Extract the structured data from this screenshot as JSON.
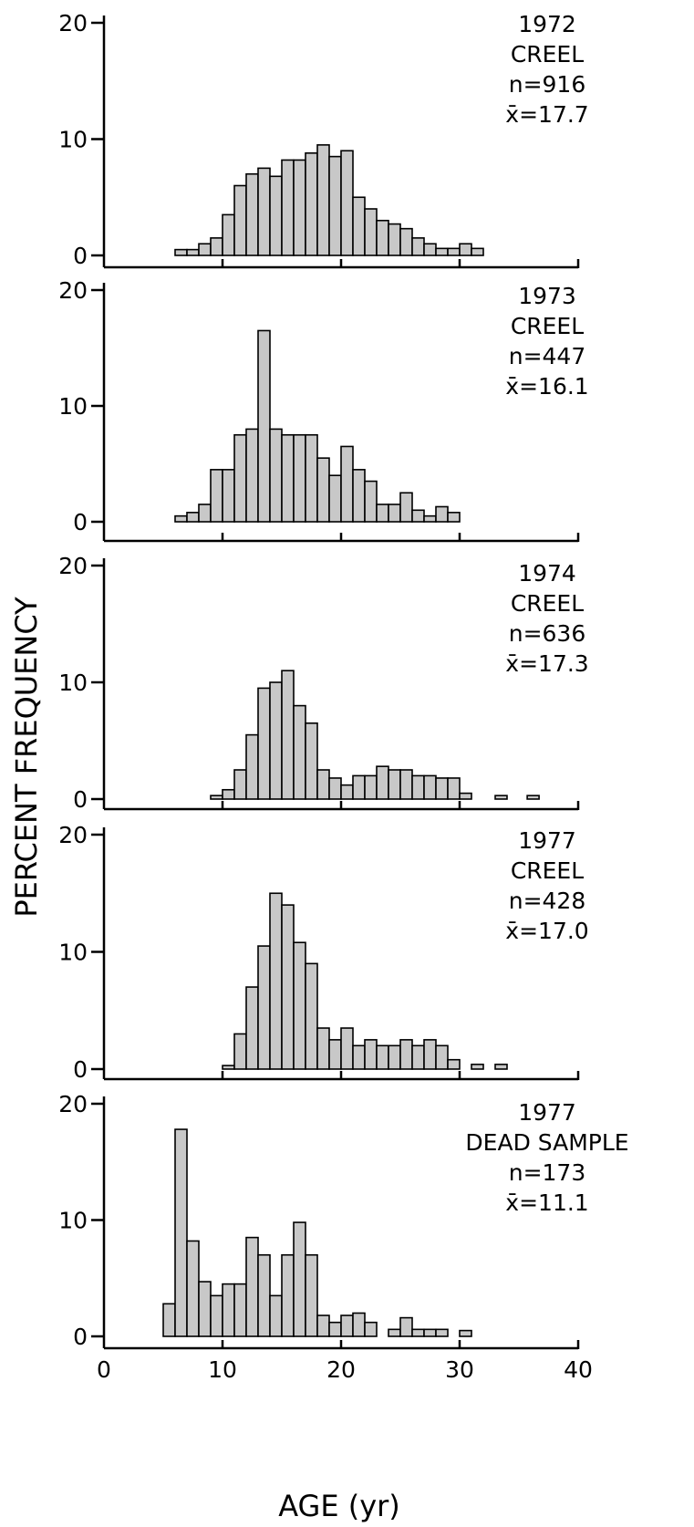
{
  "chart_data": {
    "type": "histogram",
    "xlabel": "AGE (yr)",
    "ylabel": "PERCENT FREQUENCY",
    "xlim": [
      0,
      40
    ],
    "xticks": [
      0,
      10,
      20,
      30,
      40
    ],
    "xtick_labels": [
      "0",
      "10",
      "20",
      "30",
      "40"
    ],
    "ylim": [
      0,
      20
    ],
    "yticks": [
      0,
      10,
      20
    ],
    "ytick_labels": [
      "0",
      "10",
      "20"
    ],
    "fill_color": "#c8c8c8",
    "panels": [
      {
        "label_lines": [
          "1972",
          "CREEL",
          "n=916",
          "x̄=17.7"
        ],
        "bins": [
          {
            "x": 6,
            "y": 0.5
          },
          {
            "x": 7,
            "y": 0.5
          },
          {
            "x": 8,
            "y": 1
          },
          {
            "x": 9,
            "y": 1.5
          },
          {
            "x": 10,
            "y": 3.5
          },
          {
            "x": 11,
            "y": 6
          },
          {
            "x": 12,
            "y": 7
          },
          {
            "x": 13,
            "y": 7.5
          },
          {
            "x": 14,
            "y": 6.8
          },
          {
            "x": 15,
            "y": 8.2
          },
          {
            "x": 16,
            "y": 8.2
          },
          {
            "x": 17,
            "y": 8.8
          },
          {
            "x": 18,
            "y": 9.5
          },
          {
            "x": 19,
            "y": 8.5
          },
          {
            "x": 20,
            "y": 9
          },
          {
            "x": 21,
            "y": 5
          },
          {
            "x": 22,
            "y": 4
          },
          {
            "x": 23,
            "y": 3
          },
          {
            "x": 24,
            "y": 2.7
          },
          {
            "x": 25,
            "y": 2.3
          },
          {
            "x": 26,
            "y": 1.5
          },
          {
            "x": 27,
            "y": 1
          },
          {
            "x": 28,
            "y": 0.6
          },
          {
            "x": 29,
            "y": 0.6
          },
          {
            "x": 30,
            "y": 1
          },
          {
            "x": 31,
            "y": 0.6
          }
        ]
      },
      {
        "label_lines": [
          "1973",
          "CREEL",
          "n=447",
          "x̄=16.1"
        ],
        "bins": [
          {
            "x": 6,
            "y": 0.5
          },
          {
            "x": 7,
            "y": 0.8
          },
          {
            "x": 8,
            "y": 1.5
          },
          {
            "x": 9,
            "y": 4.5
          },
          {
            "x": 10,
            "y": 4.5
          },
          {
            "x": 11,
            "y": 7.5
          },
          {
            "x": 12,
            "y": 8
          },
          {
            "x": 13,
            "y": 16.5
          },
          {
            "x": 14,
            "y": 8
          },
          {
            "x": 15,
            "y": 7.5
          },
          {
            "x": 16,
            "y": 7.5
          },
          {
            "x": 17,
            "y": 7.5
          },
          {
            "x": 18,
            "y": 5.5
          },
          {
            "x": 19,
            "y": 4
          },
          {
            "x": 20,
            "y": 6.5
          },
          {
            "x": 21,
            "y": 4.5
          },
          {
            "x": 22,
            "y": 3.5
          },
          {
            "x": 23,
            "y": 1.5
          },
          {
            "x": 24,
            "y": 1.5
          },
          {
            "x": 25,
            "y": 2.5
          },
          {
            "x": 26,
            "y": 1
          },
          {
            "x": 27,
            "y": 0.5
          },
          {
            "x": 28,
            "y": 1.3
          },
          {
            "x": 29,
            "y": 0.8
          }
        ]
      },
      {
        "label_lines": [
          "1974",
          "CREEL",
          "n=636",
          "x̄=17.3"
        ],
        "bins": [
          {
            "x": 9,
            "y": 0.3
          },
          {
            "x": 10,
            "y": 0.8
          },
          {
            "x": 11,
            "y": 2.5
          },
          {
            "x": 12,
            "y": 5.5
          },
          {
            "x": 13,
            "y": 9.5
          },
          {
            "x": 14,
            "y": 10
          },
          {
            "x": 15,
            "y": 11
          },
          {
            "x": 16,
            "y": 8
          },
          {
            "x": 17,
            "y": 6.5
          },
          {
            "x": 18,
            "y": 2.5
          },
          {
            "x": 19,
            "y": 1.8
          },
          {
            "x": 20,
            "y": 1.2
          },
          {
            "x": 21,
            "y": 2
          },
          {
            "x": 22,
            "y": 2
          },
          {
            "x": 23,
            "y": 2.8
          },
          {
            "x": 24,
            "y": 2.5
          },
          {
            "x": 25,
            "y": 2.5
          },
          {
            "x": 26,
            "y": 2
          },
          {
            "x": 27,
            "y": 2
          },
          {
            "x": 28,
            "y": 1.8
          },
          {
            "x": 29,
            "y": 1.8
          },
          {
            "x": 30,
            "y": 0.5
          },
          {
            "x": 33,
            "y": 0.3
          },
          {
            "x": 35.7,
            "y": 0.3
          }
        ]
      },
      {
        "label_lines": [
          "1977",
          "CREEL",
          "n=428",
          "x̄=17.0"
        ],
        "bins": [
          {
            "x": 10,
            "y": 0.3
          },
          {
            "x": 11,
            "y": 3
          },
          {
            "x": 12,
            "y": 7
          },
          {
            "x": 13,
            "y": 10.5
          },
          {
            "x": 14,
            "y": 15
          },
          {
            "x": 15,
            "y": 14
          },
          {
            "x": 16,
            "y": 10.8
          },
          {
            "x": 17,
            "y": 9
          },
          {
            "x": 18,
            "y": 3.5
          },
          {
            "x": 19,
            "y": 2.5
          },
          {
            "x": 20,
            "y": 3.5
          },
          {
            "x": 21,
            "y": 2
          },
          {
            "x": 22,
            "y": 2.5
          },
          {
            "x": 23,
            "y": 2
          },
          {
            "x": 24,
            "y": 2
          },
          {
            "x": 25,
            "y": 2.5
          },
          {
            "x": 26,
            "y": 2
          },
          {
            "x": 27,
            "y": 2.5
          },
          {
            "x": 28,
            "y": 2
          },
          {
            "x": 29,
            "y": 0.8
          },
          {
            "x": 31,
            "y": 0.4
          },
          {
            "x": 33,
            "y": 0.4
          }
        ]
      },
      {
        "label_lines": [
          "1977",
          "DEAD SAMPLE",
          "n=173",
          "x̄=11.1"
        ],
        "bins": [
          {
            "x": 5,
            "y": 2.8
          },
          {
            "x": 6,
            "y": 17.8
          },
          {
            "x": 7,
            "y": 8.2
          },
          {
            "x": 8,
            "y": 4.7
          },
          {
            "x": 9,
            "y": 3.5
          },
          {
            "x": 10,
            "y": 4.5
          },
          {
            "x": 11,
            "y": 4.5
          },
          {
            "x": 12,
            "y": 8.5
          },
          {
            "x": 13,
            "y": 7
          },
          {
            "x": 14,
            "y": 3.5
          },
          {
            "x": 15,
            "y": 7
          },
          {
            "x": 16,
            "y": 9.8
          },
          {
            "x": 17,
            "y": 7
          },
          {
            "x": 18,
            "y": 1.8
          },
          {
            "x": 19,
            "y": 1.2
          },
          {
            "x": 20,
            "y": 1.8
          },
          {
            "x": 21,
            "y": 2
          },
          {
            "x": 22,
            "y": 1.2
          },
          {
            "x": 24,
            "y": 0.6
          },
          {
            "x": 25,
            "y": 1.6
          },
          {
            "x": 26,
            "y": 0.6
          },
          {
            "x": 27,
            "y": 0.6
          },
          {
            "x": 28,
            "y": 0.6
          },
          {
            "x": 30,
            "y": 0.5
          }
        ]
      }
    ]
  }
}
